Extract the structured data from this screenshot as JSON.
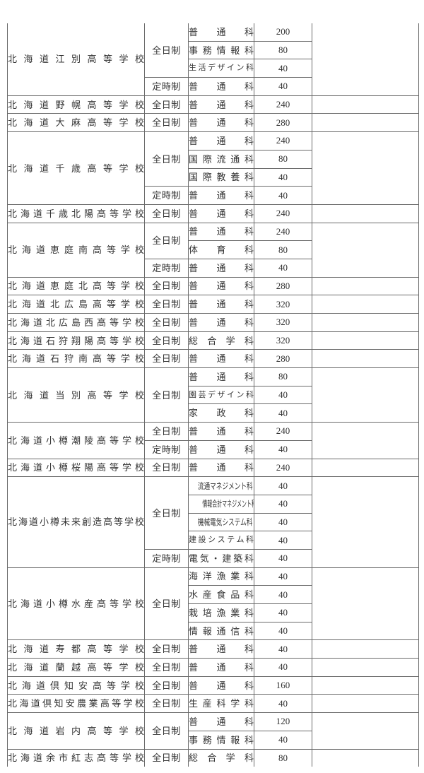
{
  "table": {
    "schools": [
      {
        "name": "北海道江別高等学校",
        "note": "",
        "courses": [
          {
            "type": "全日制",
            "depts": [
              {
                "name": "普通科",
                "capacity": 200
              },
              {
                "name": "事務情報科",
                "capacity": 80
              },
              {
                "name": "生活デザイン科",
                "capacity": 40
              }
            ]
          },
          {
            "type": "定時制",
            "depts": [
              {
                "name": "普通科",
                "capacity": 40
              }
            ]
          }
        ]
      },
      {
        "name": "北海道野幌高等学校",
        "note": "",
        "courses": [
          {
            "type": "全日制",
            "depts": [
              {
                "name": "普通科",
                "capacity": 240
              }
            ]
          }
        ]
      },
      {
        "name": "北海道大麻高等学校",
        "note": "",
        "courses": [
          {
            "type": "全日制",
            "depts": [
              {
                "name": "普通科",
                "capacity": 280
              }
            ]
          }
        ]
      },
      {
        "name": "北海道千歳高等学校",
        "note": "",
        "courses": [
          {
            "type": "全日制",
            "depts": [
              {
                "name": "普通科",
                "capacity": 240
              },
              {
                "name": "国際流通科",
                "capacity": 80
              },
              {
                "name": "国際教養科",
                "capacity": 40
              }
            ]
          },
          {
            "type": "定時制",
            "depts": [
              {
                "name": "普通科",
                "capacity": 40
              }
            ]
          }
        ]
      },
      {
        "name": "北海道千歳北陽高等学校",
        "note": "",
        "courses": [
          {
            "type": "全日制",
            "depts": [
              {
                "name": "普通科",
                "capacity": 240
              }
            ]
          }
        ]
      },
      {
        "name": "北海道恵庭南高等学校",
        "note": "",
        "courses": [
          {
            "type": "全日制",
            "depts": [
              {
                "name": "普通科",
                "capacity": 240
              },
              {
                "name": "体育科",
                "capacity": 80
              }
            ]
          },
          {
            "type": "定時制",
            "depts": [
              {
                "name": "普通科",
                "capacity": 40
              }
            ]
          }
        ]
      },
      {
        "name": "北海道恵庭北高等学校",
        "note": "",
        "courses": [
          {
            "type": "全日制",
            "depts": [
              {
                "name": "普通科",
                "capacity": 280
              }
            ]
          }
        ]
      },
      {
        "name": "北海道北広島高等学校",
        "note": "",
        "courses": [
          {
            "type": "全日制",
            "depts": [
              {
                "name": "普通科",
                "capacity": 320
              }
            ]
          }
        ]
      },
      {
        "name": "北海道北広島西高等学校",
        "note": "",
        "courses": [
          {
            "type": "全日制",
            "depts": [
              {
                "name": "普通科",
                "capacity": 320
              }
            ]
          }
        ]
      },
      {
        "name": "北海道石狩翔陽高等学校",
        "note": "",
        "courses": [
          {
            "type": "全日制",
            "depts": [
              {
                "name": "総合学科",
                "capacity": 320
              }
            ]
          }
        ]
      },
      {
        "name": "北海道石狩南高等学校",
        "note": "",
        "courses": [
          {
            "type": "全日制",
            "depts": [
              {
                "name": "普通科",
                "capacity": 280
              }
            ]
          }
        ]
      },
      {
        "name": "北海道当別高等学校",
        "note": "",
        "courses": [
          {
            "type": "全日制",
            "depts": [
              {
                "name": "普通科",
                "capacity": 80
              },
              {
                "name": "園芸デザイン科",
                "capacity": 40
              },
              {
                "name": "家政科",
                "capacity": 40
              }
            ]
          }
        ]
      },
      {
        "name": "北海道小樽潮陵高等学校",
        "note": "",
        "courses": [
          {
            "type": "全日制",
            "depts": [
              {
                "name": "普通科",
                "capacity": 240
              }
            ]
          },
          {
            "type": "定時制",
            "depts": [
              {
                "name": "普通科",
                "capacity": 40
              }
            ]
          }
        ]
      },
      {
        "name": "北海道小樽桜陽高等学校",
        "note": "",
        "courses": [
          {
            "type": "全日制",
            "depts": [
              {
                "name": "普通科",
                "capacity": 240
              }
            ]
          }
        ]
      },
      {
        "name": "北海道小樽未来創造高等学校",
        "note": "",
        "courses": [
          {
            "type": "全日制",
            "depts": [
              {
                "name": "流通マネジメント科",
                "capacity": 40
              },
              {
                "name": "情報会計マネジメント科",
                "capacity": 40
              },
              {
                "name": "機械電気システム科",
                "capacity": 40
              },
              {
                "name": "建設システム科",
                "capacity": 40
              }
            ]
          },
          {
            "type": "定時制",
            "depts": [
              {
                "name": "電気・建築科",
                "capacity": 40
              }
            ]
          }
        ]
      },
      {
        "name": "北海道小樽水産高等学校",
        "note": "",
        "courses": [
          {
            "type": "全日制",
            "depts": [
              {
                "name": "海洋漁業科",
                "capacity": 40
              },
              {
                "name": "水産食品科",
                "capacity": 40
              },
              {
                "name": "栽培漁業科",
                "capacity": 40
              },
              {
                "name": "情報通信科",
                "capacity": 40
              }
            ]
          }
        ]
      },
      {
        "name": "北海道寿都高等学校",
        "note": "",
        "courses": [
          {
            "type": "全日制",
            "depts": [
              {
                "name": "普通科",
                "capacity": 40
              }
            ]
          }
        ]
      },
      {
        "name": "北海道蘭越高等学校",
        "note": "",
        "courses": [
          {
            "type": "全日制",
            "depts": [
              {
                "name": "普通科",
                "capacity": 40
              }
            ]
          }
        ]
      },
      {
        "name": "北海道倶知安高等学校",
        "note": "",
        "courses": [
          {
            "type": "全日制",
            "depts": [
              {
                "name": "普通科",
                "capacity": 160
              }
            ]
          }
        ]
      },
      {
        "name": "北海道倶知安農業高等学校",
        "note": "",
        "courses": [
          {
            "type": "全日制",
            "depts": [
              {
                "name": "生産科学科",
                "capacity": 40
              }
            ]
          }
        ]
      },
      {
        "name": "北海道岩内高等学校",
        "note": "",
        "courses": [
          {
            "type": "全日制",
            "depts": [
              {
                "name": "普通科",
                "capacity": 120
              },
              {
                "name": "事務情報科",
                "capacity": 40
              }
            ]
          }
        ]
      },
      {
        "name": "北海道余市紅志高等学校",
        "note": "",
        "courses": [
          {
            "type": "全日制",
            "depts": [
              {
                "name": "総合学科",
                "capacity": 80
              }
            ]
          }
        ]
      }
    ]
  }
}
